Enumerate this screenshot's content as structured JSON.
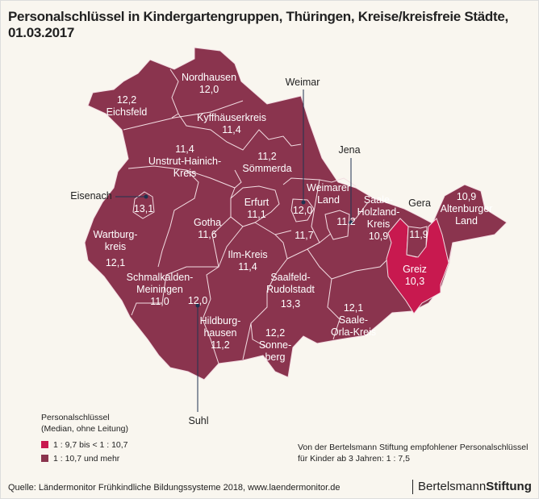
{
  "title": "Personalschlüssel in Kindergartengruppen, Thüringen, Kreise/kreisfreie Städte, 01.03.2017",
  "colors": {
    "background": "#f9f6ef",
    "class_low": "#c8194f",
    "class_high": "#8a344e",
    "border": "#f3dde3"
  },
  "regions": [
    {
      "name": "Nordhausen",
      "value": "12,0",
      "class": "high"
    },
    {
      "name": "Eichsfeld",
      "value": "12,2",
      "class": "high"
    },
    {
      "name": "Kyffhäuserkreis",
      "value": "11,4",
      "class": "high"
    },
    {
      "name": "Unstrut-Hainich-Kreis",
      "value": "11,4",
      "class": "high"
    },
    {
      "name": "Sömmerda",
      "value": "11,2",
      "class": "high"
    },
    {
      "name": "Eisenach",
      "value": "13,1",
      "class": "high"
    },
    {
      "name": "Erfurt",
      "value": "11,1",
      "class": "high"
    },
    {
      "name": "Weimar",
      "value": "12,0",
      "class": "high"
    },
    {
      "name": "Weimarer Land",
      "value": "11,7",
      "class": "high"
    },
    {
      "name": "Jena",
      "value": "11,2",
      "class": "high"
    },
    {
      "name": "Saale-Holzland-Kreis",
      "value": "10,9",
      "class": "high"
    },
    {
      "name": "Gera",
      "value": "11,9",
      "class": "high"
    },
    {
      "name": "Altenburger Land",
      "value": "10,9",
      "class": "high"
    },
    {
      "name": "Wartburgkreis",
      "value": "12,1",
      "class": "high"
    },
    {
      "name": "Gotha",
      "value": "11,6",
      "class": "high"
    },
    {
      "name": "Ilm-Kreis",
      "value": "11,4",
      "class": "high"
    },
    {
      "name": "Greiz",
      "value": "10,3",
      "class": "low"
    },
    {
      "name": "Schmalkalden-Meiningen",
      "value": "11,0",
      "class": "high"
    },
    {
      "name": "Suhl",
      "value": "12,0",
      "class": "high"
    },
    {
      "name": "Saalfeld-Rudolstadt",
      "value": "13,3",
      "class": "high"
    },
    {
      "name": "Saale-Orla-Kreis",
      "value": "12,1",
      "class": "high"
    },
    {
      "name": "Hildburghausen",
      "value": "11,2",
      "class": "high"
    },
    {
      "name": "Sonneberg",
      "value": "12,2",
      "class": "high"
    }
  ],
  "labels": {
    "nordhausen": [
      "Nordhausen",
      "12,0"
    ],
    "eichsfeld": [
      "12,2",
      "Eichsfeld"
    ],
    "kyffhaeuser": [
      "Kyffhäuserkreis",
      "11,4"
    ],
    "unstrut": [
      "11,4",
      "Unstrut-Hainich-",
      "Kreis"
    ],
    "soemmerda": [
      "11,2",
      "Sömmerda"
    ],
    "erfurt": [
      "Erfurt",
      "11,1"
    ],
    "weimarer_land": [
      "Weimarer",
      "Land"
    ],
    "weimarer_land_value": "11,7",
    "weimar_value": "12,0",
    "jena_value": "11,2",
    "saale_holzland": [
      "Saale-",
      "Holzland-",
      "Kreis",
      "10,9"
    ],
    "gera_value": "11,9",
    "altenburg": [
      "10,9",
      "Altenburger",
      "Land"
    ],
    "eisenach_value": "13,1",
    "wartburg": [
      "Wartburg-",
      "kreis",
      "12,1"
    ],
    "gotha": [
      "Gotha",
      "11,6"
    ],
    "ilm": [
      "Ilm-Kreis",
      "11,4"
    ],
    "greiz": [
      "Greiz",
      "10,3"
    ],
    "schmalkalden": [
      "Schmalkalden-",
      "Meiningen",
      "11,0"
    ],
    "suhl_value": "12,0",
    "saalfeld": [
      "Saalfeld-",
      "Rudolstadt",
      "13,3"
    ],
    "saale_orla": [
      "12,1",
      "Saale-",
      "Orla-Kreis"
    ],
    "hildburghausen": [
      "Hildburg-",
      "hausen",
      "11,2"
    ],
    "sonneberg": [
      "12,2",
      "Sonne-",
      "berg"
    ],
    "callouts": {
      "weimar": "Weimar",
      "jena": "Jena",
      "gera": "Gera",
      "eisenach": "Eisenach",
      "suhl": "Suhl"
    }
  },
  "legend": {
    "title": [
      "Personalschlüssel",
      "(Median, ohne Leitung)"
    ],
    "items": [
      {
        "label": "1 : 9,7 bis < 1 : 10,7",
        "color": "#c8194f"
      },
      {
        "label": "1 : 10,7 und mehr",
        "color": "#8a344e"
      }
    ]
  },
  "recommendation": [
    "Von der Bertelsmann Stiftung empfohlener Personalschlüssel",
    "für Kinder ab 3 Jahren: 1 : 7,5"
  ],
  "source": "Quelle: Ländermonitor Frühkindliche Bildungssysteme 2018, www.laendermonitor.de",
  "logo": {
    "light": "Bertelsmann",
    "bold": "Stiftung"
  }
}
